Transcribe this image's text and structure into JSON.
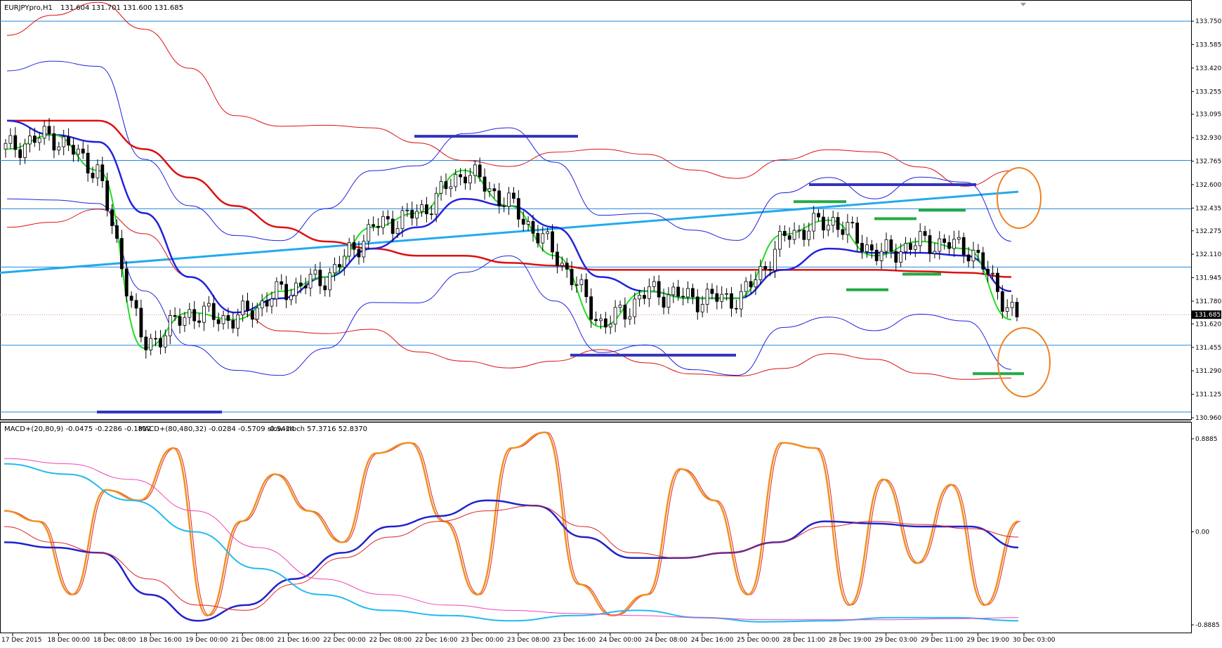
{
  "header": {
    "symbol": "EURJPYpro,H1",
    "ohlc": "131.604 131.701 131.600 131.685"
  },
  "indicator_header": {
    "macd1": "MACD+(20,80,9) -0.0475 -0.2286 -0.1812",
    "macd2": "MACD+(80,480,32) -0.0284 -0.5709 -0.5424",
    "stoch": "slow-stoch 57.3716 52.8370"
  },
  "price_axis": {
    "ticks": [
      "133.750",
      "133.585",
      "133.420",
      "133.255",
      "133.095",
      "132.930",
      "132.765",
      "132.600",
      "132.435",
      "132.275",
      "132.110",
      "131.945",
      "131.780",
      "131.620",
      "131.455",
      "131.290",
      "131.125",
      "130.960"
    ],
    "current_price": "131.685"
  },
  "indicator_axis": {
    "ticks": [
      "0.8885",
      "0.00",
      "-0.8885"
    ]
  },
  "time_axis": {
    "ticks": [
      "17 Dec 2015",
      "18 Dec 00:00",
      "18 Dec 08:00",
      "18 Dec 16:00",
      "19 Dec 00:00",
      "21 Dec 08:00",
      "21 Dec 16:00",
      "22 Dec 00:00",
      "22 Dec 08:00",
      "22 Dec 16:00",
      "23 Dec 00:00",
      "23 Dec 08:00",
      "23 Dec 16:00",
      "24 Dec 00:00",
      "24 Dec 08:00",
      "24 Dec 16:00",
      "25 Dec 00:00",
      "28 Dec 11:00",
      "28 Dec 19:00",
      "29 Dec 03:00",
      "29 Dec 11:00",
      "29 Dec 19:00",
      "30 Dec 03:00"
    ]
  },
  "colors": {
    "bull_candle": "#ffffff",
    "bear_candle": "#000000",
    "bollinger_20": "#2222dd",
    "ma_fast": "#22dd22",
    "ma_slow": "#dd1111",
    "trendline": "#22aaee",
    "support_marks": "#3333bb",
    "swing_marks": "#22aa44",
    "circles": "#f08020",
    "stoch": "#f09020",
    "macd_fast": "#2222cc",
    "macd_long": "#22bbee",
    "macd_signal_long": "#ee44bb"
  },
  "chart_data": {
    "type": "line",
    "title": "EURJPYpro,H1",
    "ylim": [
      130.96,
      133.8
    ],
    "horizontal_levels": [
      133.75,
      132.77,
      132.43,
      132.02,
      131.47,
      131.0
    ],
    "current_price": 131.685,
    "x": [
      "17 Dec 2015",
      "18 Dec 00:00",
      "18 Dec 08:00",
      "18 Dec 16:00",
      "19 Dec 00:00",
      "21 Dec 08:00",
      "21 Dec 16:00",
      "22 Dec 00:00",
      "22 Dec 08:00",
      "22 Dec 16:00",
      "23 Dec 00:00",
      "23 Dec 08:00",
      "23 Dec 16:00",
      "24 Dec 00:00",
      "24 Dec 08:00",
      "24 Dec 16:00",
      "25 Dec 00:00",
      "28 Dec 11:00",
      "28 Dec 19:00",
      "29 Dec 03:00",
      "29 Dec 11:00",
      "29 Dec 19:00",
      "30 Dec 03:00"
    ],
    "series": [
      {
        "values": [
          132.85,
          132.95,
          132.7,
          131.45,
          131.7,
          131.65,
          131.85,
          131.95,
          132.3,
          132.4,
          132.7,
          132.45,
          132.1,
          131.6,
          131.85,
          131.8,
          131.8,
          132.25,
          132.35,
          132.1,
          132.2,
          132.15,
          131.65
        ]
      },
      {
        "values": [
          133.05,
          133.05,
          133.05,
          132.85,
          132.65,
          132.45,
          132.3,
          132.2,
          132.15,
          132.1,
          132.1,
          132.05,
          132.03,
          132.0,
          132.0,
          132.0,
          132.0,
          132.0,
          132.0,
          132.0,
          131.99,
          131.98,
          131.95
        ]
      },
      {
        "values": [
          133.05,
          132.95,
          132.9,
          132.4,
          131.95,
          131.7,
          131.8,
          131.95,
          132.15,
          132.3,
          132.5,
          132.45,
          132.3,
          131.95,
          131.85,
          131.8,
          131.8,
          132.0,
          132.15,
          132.12,
          132.12,
          132.1,
          131.85
        ]
      }
    ]
  }
}
